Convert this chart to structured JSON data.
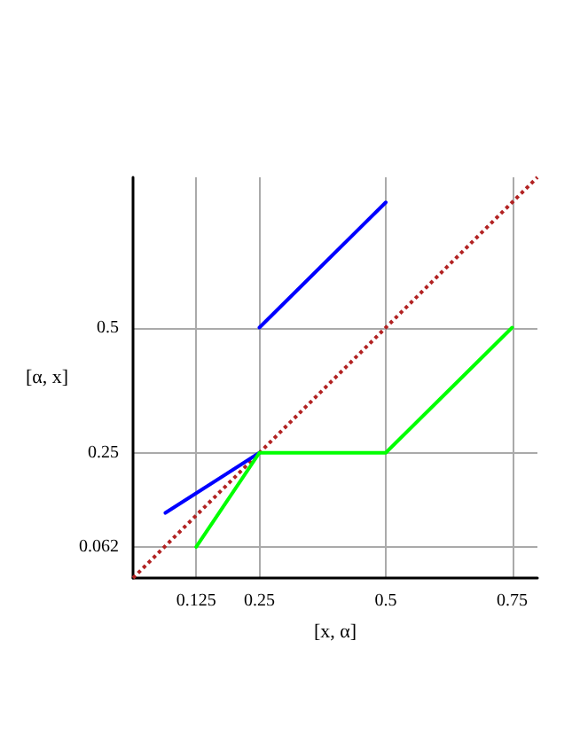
{
  "chart_data": {
    "type": "line",
    "xlabel": "[x, α]",
    "ylabel": "[α, x]",
    "xlim": [
      0,
      0.8
    ],
    "ylim": [
      0,
      0.8
    ],
    "xticks": [
      0.125,
      0.25,
      0.5,
      0.75
    ],
    "yticks": [
      0.062,
      0.25,
      0.5
    ],
    "grid": true,
    "marker": "none",
    "series": [
      {
        "color": "#b22222",
        "line_style": "dotted",
        "x": [
          0,
          0.8
        ],
        "values": [
          0,
          0.8
        ]
      },
      {
        "color": "#0000ff",
        "line_style": "solid",
        "x": [
          0.064,
          0.25
        ],
        "values": [
          0.13,
          0.25
        ]
      },
      {
        "color": "#0000ff",
        "line_style": "solid",
        "x": [
          0.25,
          0.5
        ],
        "values": [
          0.5,
          0.75
        ]
      },
      {
        "color": "#00ff00",
        "line_style": "solid",
        "x": [
          0.125,
          0.25,
          0.5,
          0.75
        ],
        "values": [
          0.062,
          0.25,
          0.25,
          0.5
        ]
      }
    ]
  }
}
